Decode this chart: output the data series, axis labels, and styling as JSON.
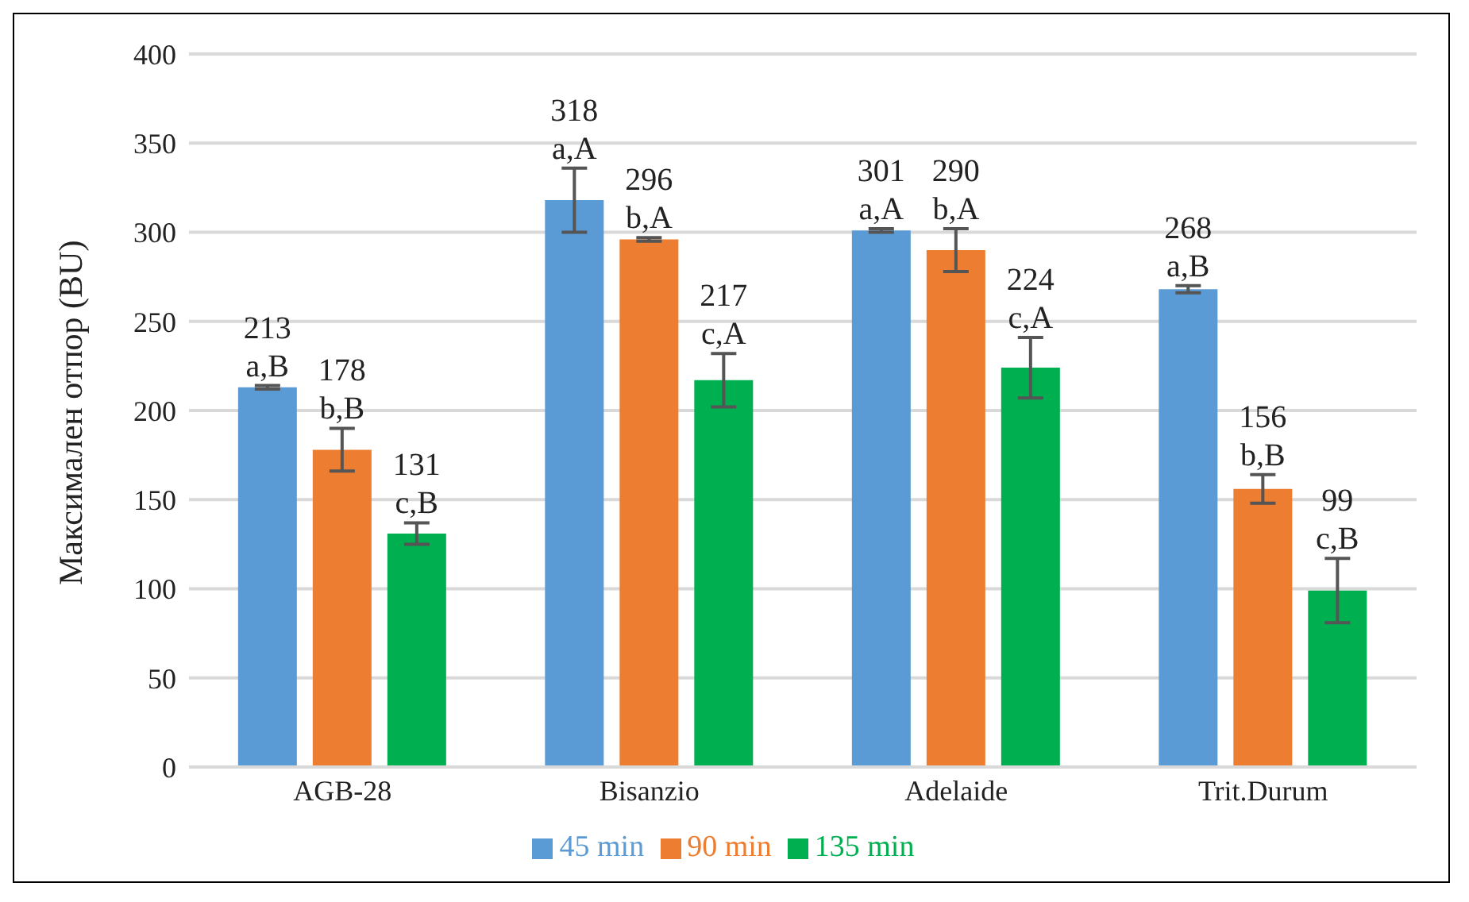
{
  "chart_data": {
    "type": "bar",
    "ylabel": "Максимален отпор (BU)",
    "categories": [
      "AGB-28",
      "Bisanzio",
      "Adelaide",
      "Trit.Durum"
    ],
    "series": [
      {
        "name": "45 min",
        "color": "#5b9bd5",
        "values": [
          213,
          318,
          301,
          268
        ],
        "errors": [
          1,
          18,
          1,
          2
        ],
        "value_labels": [
          "213\na,B",
          "318\na,A",
          "301\na,A",
          "268\na,B"
        ]
      },
      {
        "name": "90 min",
        "color": "#ed7d31",
        "values": [
          178,
          296,
          290,
          156
        ],
        "errors": [
          12,
          1,
          12,
          8
        ],
        "value_labels": [
          "178\nb,B",
          "296\nb,A",
          "290\nb,A",
          "156\nb,B"
        ]
      },
      {
        "name": "135 min",
        "color": "#00b050",
        "values": [
          131,
          217,
          224,
          99
        ],
        "errors": [
          6,
          15,
          17,
          18
        ],
        "value_labels": [
          "131\nc,B",
          "217\nc,A",
          "224\nc,A",
          "99\nc,B"
        ]
      }
    ],
    "ylim": [
      0,
      400
    ],
    "yticks": [
      0,
      50,
      100,
      150,
      200,
      250,
      300,
      350,
      400
    ],
    "grid": "y",
    "legend": "bottom"
  }
}
